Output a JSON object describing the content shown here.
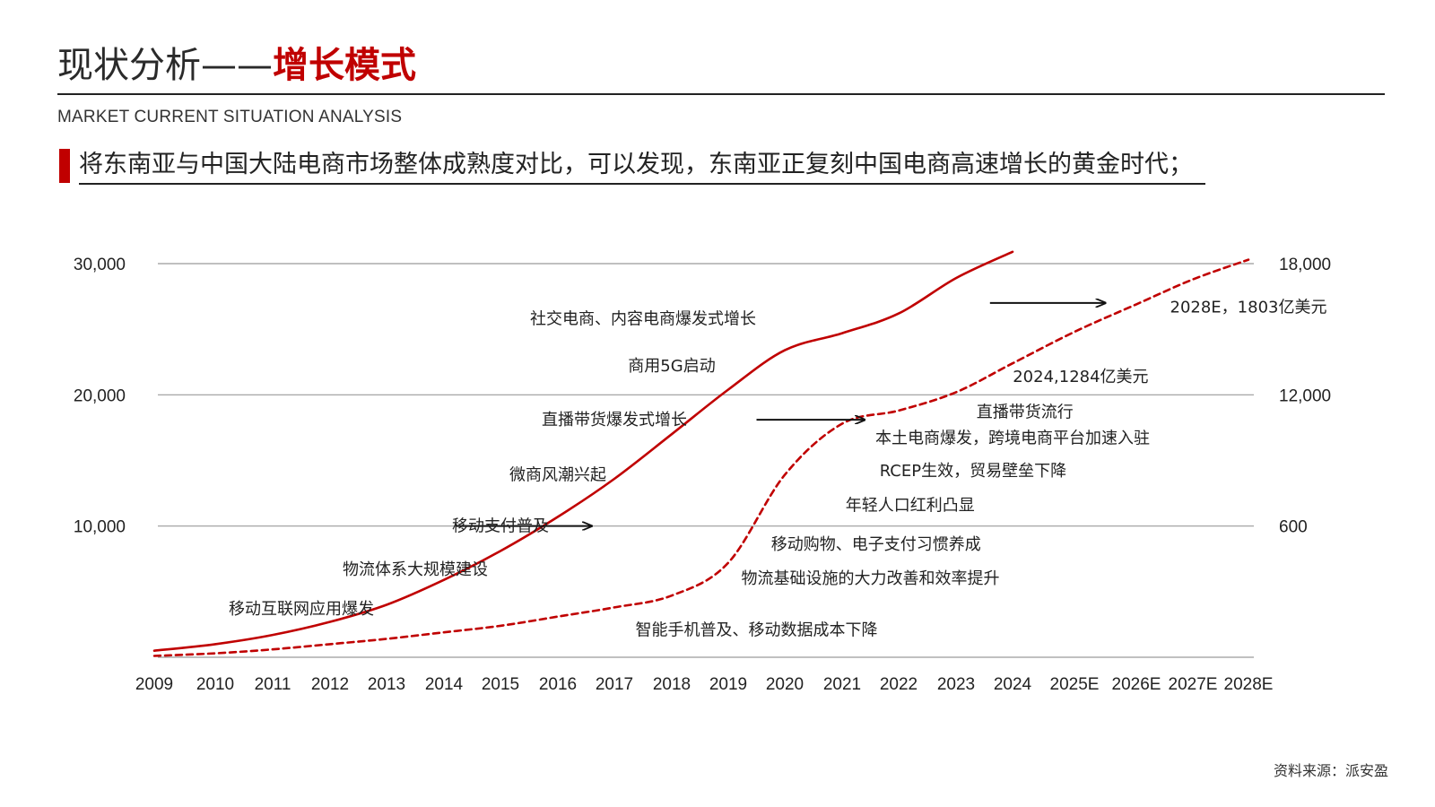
{
  "header": {
    "title_plain": "现状分析——",
    "title_accent": "增长模式",
    "subtitle": "MARKET CURRENT SITUATION ANALYSIS",
    "headline": "将东南亚与中国大陆电商市场整体成熟度对比，可以发现，东南亚正复刻中国电商高速增长的黄金时代；"
  },
  "colors": {
    "accent": "#c00000",
    "gridline": "#9a9a9a",
    "text": "#222222"
  },
  "chart_data": {
    "type": "line",
    "categories": [
      "2009",
      "2010",
      "2011",
      "2012",
      "2013",
      "2014",
      "2015",
      "2016",
      "2017",
      "2018",
      "2019",
      "2020",
      "2021",
      "2022",
      "2023",
      "2024",
      "2025E",
      "2026E",
      "2027E",
      "2028E"
    ],
    "left_axis": {
      "ticks": [
        10000,
        20000,
        30000
      ],
      "tick_labels": [
        "10,000",
        "20,000",
        "30,000"
      ],
      "ylim": [
        0,
        30000
      ]
    },
    "right_axis": {
      "ticks": [
        600,
        12000,
        18000
      ],
      "tick_labels": [
        "600",
        "12,000",
        "18,000"
      ]
    },
    "grid": true,
    "series": [
      {
        "style": "solid",
        "color": "#c00000",
        "axis": "left",
        "x": [
          "2009",
          "2010",
          "2011",
          "2012",
          "2013",
          "2014",
          "2015",
          "2016",
          "2017",
          "2018",
          "2019",
          "2020",
          "2021",
          "2022",
          "2023",
          "2024"
        ],
        "values": [
          500,
          1000,
          1700,
          2700,
          4000,
          5900,
          8100,
          10700,
          13600,
          17000,
          20400,
          23400,
          24700,
          26200,
          28900,
          30900
        ]
      },
      {
        "style": "dashed",
        "color": "#c00000",
        "axis": "left",
        "x": [
          "2009",
          "2010",
          "2011",
          "2012",
          "2013",
          "2014",
          "2015",
          "2016",
          "2017",
          "2018",
          "2019",
          "2020",
          "2021",
          "2022",
          "2023",
          "2024",
          "2025E",
          "2026E",
          "2027E",
          "2028E"
        ],
        "values": [
          100,
          300,
          600,
          1000,
          1400,
          1900,
          2400,
          3100,
          3800,
          4700,
          7200,
          13900,
          17800,
          18800,
          20200,
          22400,
          24800,
          26900,
          28800,
          30300
        ]
      }
    ],
    "annotations": [
      {
        "text": "社交电商、内容电商爆发式增长",
        "x": "2017.5",
        "y": 25800
      },
      {
        "text": "商用5G启动",
        "x": "2018",
        "y": 22200
      },
      {
        "text": "直播带货爆发式增长",
        "x": "2017",
        "y": 18100
      },
      {
        "text": "微商风潮兴起",
        "x": "2016",
        "y": 13900
      },
      {
        "text": "移动支付普及",
        "x": "2015",
        "y": 10000
      },
      {
        "text": "物流体系大规模建设",
        "x": "2013.5",
        "y": 6700
      },
      {
        "text": "移动互联网应用爆发",
        "x": "2011.5",
        "y": 3700
      },
      {
        "text": "智能手机普及、移动数据成本下降",
        "x": "2019.5",
        "y": 2100
      },
      {
        "text": "物流基础设施的大力改善和效率提升",
        "x": "2021.5",
        "y": 6000
      },
      {
        "text": "移动购物、电子支付习惯养成",
        "x": "2021.6",
        "y": 8600
      },
      {
        "text": "年轻人口红利凸显",
        "x": "2022.2",
        "y": 11600
      },
      {
        "text": "RCEP生效，贸易壁垒下降",
        "x": "2023.3",
        "y": 14200
      },
      {
        "text": "本土电商爆发，跨境电商平台加速入驻",
        "x": "2024",
        "y": 16700
      },
      {
        "text": "直播带货流行",
        "x": "2024.2",
        "y": 18700
      },
      {
        "text": "2024,1284亿美元",
        "x": "2025.1",
        "y": 21400
      },
      {
        "text": "2028E，1803亿美元",
        "x": "2028.6",
        "y": 26700
      }
    ],
    "arrows": [
      {
        "from_x": "2014.2",
        "to_x": "2016.6",
        "y": 10000
      },
      {
        "from_x": "2019.5",
        "to_x": "2021.4",
        "y": 18100
      },
      {
        "from_x": "2023.6",
        "to_x": "2025.5",
        "y": 27000
      }
    ]
  },
  "source": "资料来源：派安盈"
}
